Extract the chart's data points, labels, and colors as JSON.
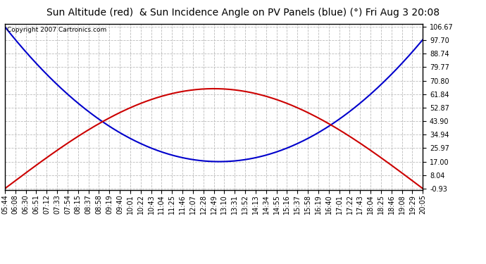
{
  "title": "Sun Altitude (red)  & Sun Incidence Angle on PV Panels (blue) (°) Fri Aug 3 20:08",
  "copyright": "Copyright 2007 Cartronics.com",
  "yticks": [
    106.67,
    97.7,
    88.74,
    79.77,
    70.8,
    61.84,
    52.87,
    43.9,
    34.94,
    25.97,
    17.0,
    8.04,
    -0.93
  ],
  "ymin": -0.93,
  "ymax": 106.67,
  "x_labels": [
    "05:44",
    "06:08",
    "06:30",
    "06:51",
    "07:12",
    "07:33",
    "07:54",
    "08:15",
    "08:37",
    "08:58",
    "09:19",
    "09:40",
    "10:01",
    "10:22",
    "10:43",
    "11:04",
    "11:25",
    "11:46",
    "12:07",
    "12:28",
    "12:49",
    "13:10",
    "13:31",
    "13:52",
    "14:13",
    "14:34",
    "14:55",
    "15:16",
    "15:37",
    "15:58",
    "16:19",
    "16:40",
    "17:01",
    "17:22",
    "17:43",
    "18:04",
    "18:25",
    "18:46",
    "19:08",
    "19:29",
    "20:05"
  ],
  "background_color": "#ffffff",
  "plot_bg_color": "#ffffff",
  "grid_color": "#bbbbbb",
  "red_color": "#cc0000",
  "blue_color": "#0000cc",
  "title_fontsize": 10,
  "tick_fontsize": 7,
  "blue_min": 17.0,
  "blue_max": 106.67,
  "blue_min_idx": 20.5,
  "red_peak": 65.5,
  "red_min": -0.93,
  "red_peak_idx": 19.5
}
